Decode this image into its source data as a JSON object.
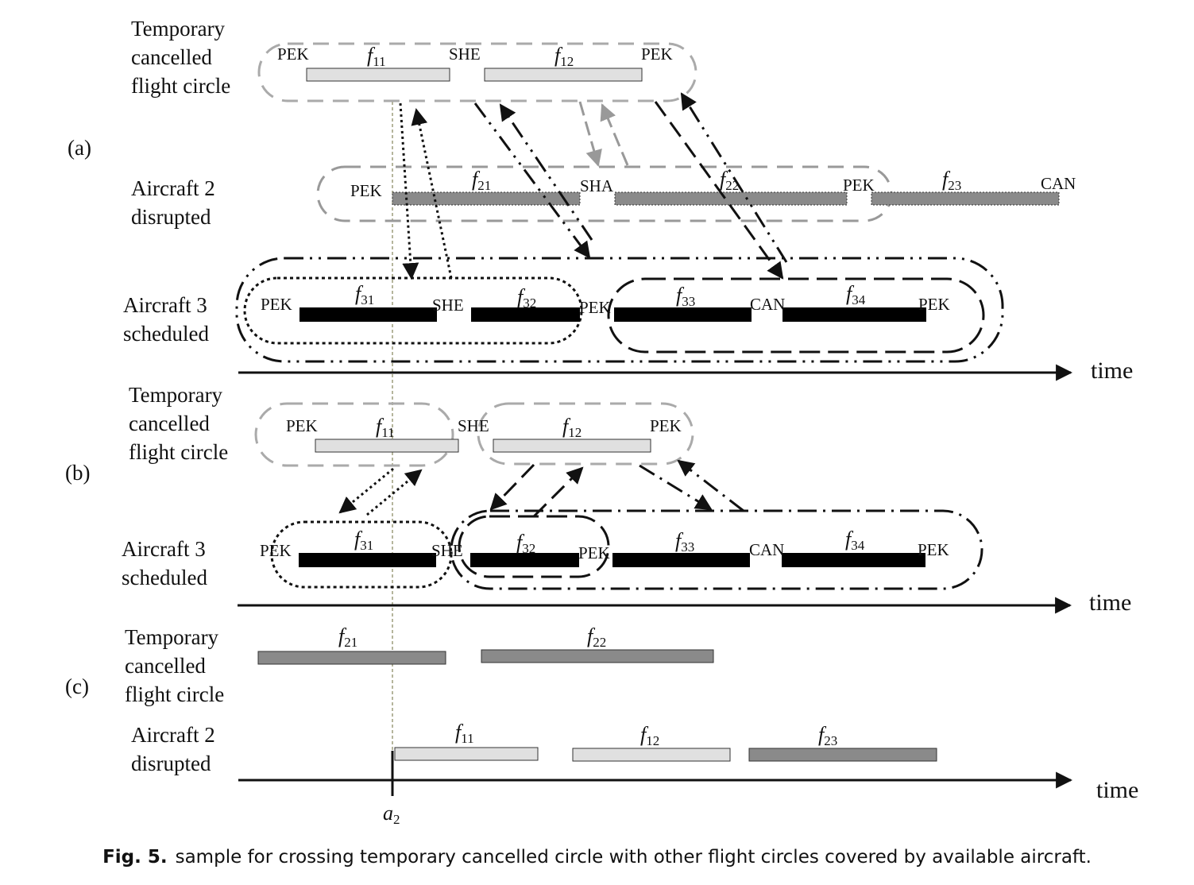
{
  "panels": {
    "a": {
      "label": "(a)",
      "rows": [
        {
          "lines": [
            "Temporary",
            "cancelled",
            "flight circle"
          ]
        },
        {
          "lines": [
            "Aircraft 2",
            "disrupted"
          ]
        },
        {
          "lines": [
            "Aircraft 3",
            "scheduled"
          ]
        }
      ],
      "airports": [
        "PEK",
        "SHE",
        "PEK",
        "PEK",
        "SHA",
        "PEK",
        "CAN",
        "PEK",
        "SHE",
        "PEK",
        "CAN",
        "PEK"
      ],
      "flights": [
        {
          "main": "f",
          "sub": "11"
        },
        {
          "main": "f",
          "sub": "12"
        },
        {
          "main": "f",
          "sub": "21"
        },
        {
          "main": "f",
          "sub": "22"
        },
        {
          "main": "f",
          "sub": "23"
        },
        {
          "main": "f",
          "sub": "31"
        },
        {
          "main": "f",
          "sub": "32"
        },
        {
          "main": "f",
          "sub": "33"
        },
        {
          "main": "f",
          "sub": "34"
        }
      ],
      "axis_label": "time"
    },
    "b": {
      "label": "(b)",
      "rows": [
        {
          "lines": [
            "Temporary",
            "cancelled",
            "flight circle"
          ]
        },
        {
          "lines": [
            "Aircraft 3",
            "scheduled"
          ]
        }
      ],
      "airports": [
        "PEK",
        "SHE",
        "PEK",
        "PEK",
        "SHE",
        "PEK",
        "CAN",
        "PEK"
      ],
      "flights": [
        {
          "main": "f",
          "sub": "11"
        },
        {
          "main": "f",
          "sub": "12"
        },
        {
          "main": "f",
          "sub": "31"
        },
        {
          "main": "f",
          "sub": "32"
        },
        {
          "main": "f",
          "sub": "33"
        },
        {
          "main": "f",
          "sub": "34"
        }
      ],
      "axis_label": "time"
    },
    "c": {
      "label": "(c)",
      "rows": [
        {
          "lines": [
            "Temporary",
            "cancelled",
            "flight circle"
          ]
        },
        {
          "lines": [
            "Aircraft 2",
            "disrupted"
          ]
        }
      ],
      "flights": [
        {
          "main": "f",
          "sub": "21"
        },
        {
          "main": "f",
          "sub": "22"
        },
        {
          "main": "f",
          "sub": "11"
        },
        {
          "main": "f",
          "sub": "12"
        },
        {
          "main": "f",
          "sub": "23"
        }
      ],
      "axis_label": "time"
    }
  },
  "marker": {
    "main": "a",
    "sub": "2"
  },
  "colors": {
    "cancelled": "#e0e0e0",
    "disrupted": "#8a8a8a",
    "scheduled": "#000000",
    "circle": "#aaaaaa"
  },
  "caption": {
    "label": "Fig. 5.",
    "text": "sample for crossing temporary cancelled circle with other flight circles covered by available aircraft."
  }
}
